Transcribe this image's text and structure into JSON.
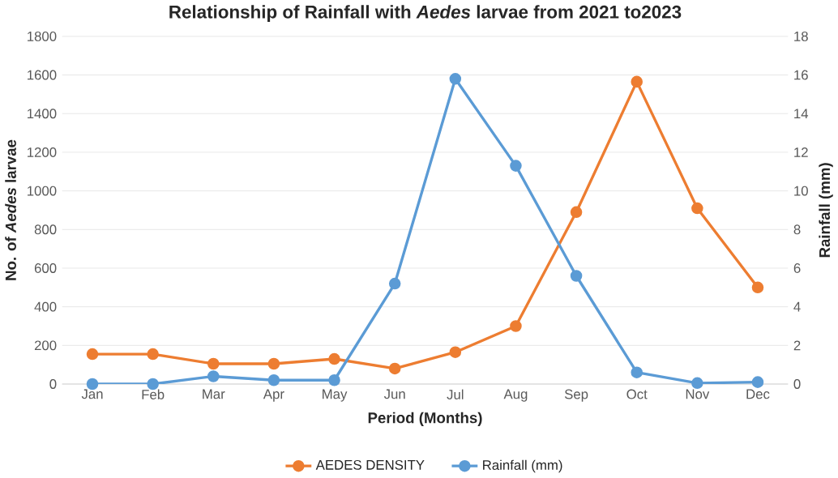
{
  "chart_data": {
    "type": "line",
    "title": "Relationship of Rainfall with *Aedes* larvae from 2021 to2023",
    "xlabel": "Period (Months)",
    "ylabel": "No. of *Aedes* larvae",
    "y2label": "Rainfall (mm)",
    "categories": [
      "Jan",
      "Feb",
      "Mar",
      "Apr",
      "May",
      "Jun",
      "Jul",
      "Aug",
      "Sep",
      "Oct",
      "Nov",
      "Dec"
    ],
    "series": [
      {
        "name": "AEDES DENSITY",
        "color": "#ed7d31",
        "values": [
          155,
          155,
          105,
          105,
          130,
          80,
          165,
          300,
          890,
          1565,
          910,
          500
        ]
      },
      {
        "name": "Rainfall (mm)",
        "color": "#5b9bd5",
        "axis": "y2",
        "values": [
          0,
          0,
          0.4,
          0.2,
          0.2,
          5.2,
          15.8,
          11.3,
          5.6,
          0.6,
          0.05,
          0.1
        ]
      }
    ],
    "ylim": [
      0,
      1800
    ],
    "yticks": [
      0,
      200,
      400,
      600,
      800,
      1000,
      1200,
      1400,
      1600,
      1800
    ],
    "y2lim": [
      0,
      18
    ],
    "y2ticks": [
      0,
      2,
      4,
      6,
      8,
      10,
      12,
      14,
      16,
      18
    ],
    "grid": "y",
    "legend": "bottom",
    "marker": "circle",
    "line_style": "solid"
  }
}
